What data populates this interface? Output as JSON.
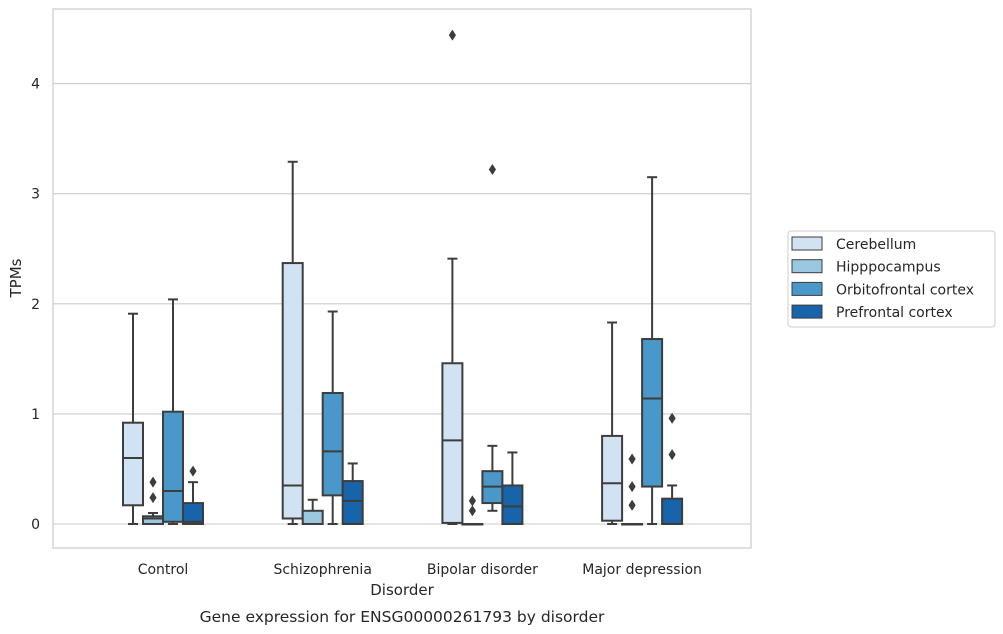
{
  "caption": "Gene expression for ENSG00000261793 by disorder",
  "chart_data": {
    "type": "box",
    "title": "",
    "xlabel": "Disorder",
    "ylabel": "TPMs",
    "ylim": [
      -0.22,
      4.68
    ],
    "yticks": [
      0,
      1,
      2,
      3,
      4
    ],
    "grid": "horizontal",
    "legend_position": "right",
    "categories": [
      "Control",
      "Schizophrenia",
      "Bipolar disorder",
      "Major depression"
    ],
    "series": [
      {
        "name": "Cerebellum",
        "color": "#d1e2f2",
        "boxes": [
          {
            "whisker_low": 0.0,
            "q1": 0.17,
            "median": 0.6,
            "q3": 0.92,
            "whisker_high": 1.91,
            "outliers": []
          },
          {
            "whisker_low": 0.0,
            "q1": 0.05,
            "median": 0.35,
            "q3": 2.37,
            "whisker_high": 3.29,
            "outliers": []
          },
          {
            "whisker_low": 0.0,
            "q1": 0.01,
            "median": 0.76,
            "q3": 1.46,
            "whisker_high": 2.41,
            "outliers": [
              4.44
            ]
          },
          {
            "whisker_low": 0.0,
            "q1": 0.03,
            "median": 0.37,
            "q3": 0.8,
            "whisker_high": 1.83,
            "outliers": []
          }
        ]
      },
      {
        "name": "Hipppocampus",
        "color": "#9ac8e0",
        "boxes": [
          {
            "whisker_low": 0.0,
            "q1": 0.0,
            "median": 0.05,
            "q3": 0.07,
            "whisker_high": 0.1,
            "outliers": [
              0.24,
              0.38
            ]
          },
          {
            "whisker_low": 0.0,
            "q1": 0.0,
            "median": 0.0,
            "q3": 0.12,
            "whisker_high": 0.22,
            "outliers": []
          },
          {
            "whisker_low": 0.0,
            "q1": 0.0,
            "median": 0.0,
            "q3": 0.0,
            "whisker_high": 0.0,
            "outliers": [
              0.12,
              0.21
            ]
          },
          {
            "whisker_low": 0.0,
            "q1": 0.0,
            "median": 0.0,
            "q3": 0.0,
            "whisker_high": 0.0,
            "outliers": [
              0.17,
              0.34,
              0.59
            ]
          }
        ]
      },
      {
        "name": "Orbitofrontal cortex",
        "color": "#4a97c9",
        "boxes": [
          {
            "whisker_low": 0.0,
            "q1": 0.02,
            "median": 0.3,
            "q3": 1.02,
            "whisker_high": 2.04,
            "outliers": []
          },
          {
            "whisker_low": 0.0,
            "q1": 0.26,
            "median": 0.66,
            "q3": 1.19,
            "whisker_high": 1.93,
            "outliers": []
          },
          {
            "whisker_low": 0.12,
            "q1": 0.19,
            "median": 0.34,
            "q3": 0.48,
            "whisker_high": 0.71,
            "outliers": [
              3.22
            ]
          },
          {
            "whisker_low": 0.0,
            "q1": 0.34,
            "median": 1.14,
            "q3": 1.68,
            "whisker_high": 3.15,
            "outliers": []
          }
        ]
      },
      {
        "name": "Prefrontal cortex",
        "color": "#1764ab",
        "boxes": [
          {
            "whisker_low": 0.0,
            "q1": 0.0,
            "median": 0.02,
            "q3": 0.19,
            "whisker_high": 0.38,
            "outliers": [
              0.48
            ]
          },
          {
            "whisker_low": 0.0,
            "q1": 0.0,
            "median": 0.21,
            "q3": 0.39,
            "whisker_high": 0.55,
            "outliers": []
          },
          {
            "whisker_low": 0.0,
            "q1": 0.0,
            "median": 0.16,
            "q3": 0.35,
            "whisker_high": 0.65,
            "outliers": []
          },
          {
            "whisker_low": 0.0,
            "q1": 0.0,
            "median": 0.0,
            "q3": 0.23,
            "whisker_high": 0.35,
            "outliers": [
              0.63,
              0.96
            ]
          }
        ]
      }
    ]
  }
}
